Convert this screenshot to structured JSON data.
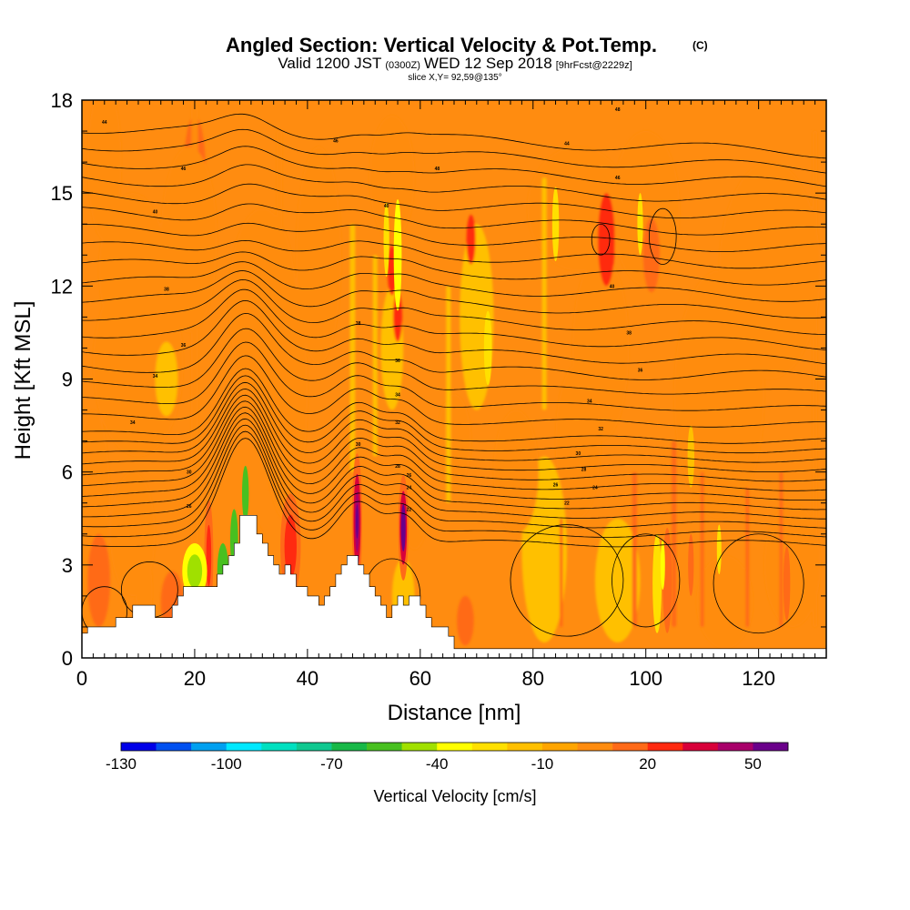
{
  "title": {
    "main": "Angled Section: Vertical Velocity & Pot.Temp.",
    "mark": "(C)",
    "line2_a": "Valid 1200 JST",
    "line2_b": "(0300Z)",
    "line2_c": "WED 12 Sep 2018",
    "line2_d": "[9hrFcst@2229z]",
    "line3": "slice X,Y= 92,59@135°"
  },
  "chart_data": {
    "type": "heatmap",
    "xlabel": "Distance [nm]",
    "ylabel": "Height [Kft MSL]",
    "xlim": [
      0,
      132
    ],
    "ylim": [
      0,
      18
    ],
    "xticks": [
      0,
      20,
      40,
      60,
      80,
      100,
      120
    ],
    "yticks": [
      0,
      3,
      6,
      9,
      12,
      15,
      18
    ],
    "colorbar": {
      "title": "Vertical Velocity [cm/s]",
      "levels": [
        -130,
        -120,
        -110,
        -100,
        -90,
        -80,
        -70,
        -60,
        -50,
        -40,
        -30,
        -20,
        -10,
        0,
        10,
        20,
        30,
        40,
        50,
        60
      ],
      "colors": [
        "#0000e8",
        "#0050f0",
        "#00a0f0",
        "#00e8ff",
        "#00e0c0",
        "#10c890",
        "#18b848",
        "#48c020",
        "#a0e000",
        "#ffff00",
        "#ffe000",
        "#ffc000",
        "#ffa500",
        "#ff8c10",
        "#ff6a18",
        "#ff2a10",
        "#d8003a",
        "#a8006a",
        "#6a008a"
      ],
      "tick_labels": [
        {
          "value": -130,
          "label": "-130"
        },
        {
          "value": -100,
          "label": "-100"
        },
        {
          "value": -70,
          "label": "-70"
        },
        {
          "value": -40,
          "label": "-40"
        },
        {
          "value": -10,
          "label": "-10"
        },
        {
          "value": 20,
          "label": "20"
        },
        {
          "value": 50,
          "label": "50"
        }
      ]
    },
    "background_velocity": 0,
    "velocity_cells": [
      {
        "x": 4,
        "y": 16.0,
        "rx": 3.0,
        "ry": 2.5,
        "v": 8
      },
      {
        "x": 9,
        "y": 12.5,
        "rx": 6.0,
        "ry": 2.5,
        "v": 8
      },
      {
        "x": 20,
        "y": 15.5,
        "rx": 2.0,
        "ry": 2.0,
        "v": 12
      },
      {
        "x": 19,
        "y": 13.5,
        "rx": 5.0,
        "ry": 3.0,
        "v": 6
      },
      {
        "x": 32,
        "y": 11.5,
        "rx": 6.0,
        "ry": 3.0,
        "v": 6
      },
      {
        "x": 42,
        "y": 13.0,
        "rx": 4.0,
        "ry": 3.5,
        "v": 6
      },
      {
        "x": 55,
        "y": 15.5,
        "rx": 4.0,
        "ry": 2.0,
        "v": 5
      },
      {
        "x": 88,
        "y": 14.5,
        "rx": 9.0,
        "ry": 2.0,
        "v": 6
      },
      {
        "x": 100,
        "y": 14.5,
        "rx": 6.0,
        "ry": 2.5,
        "v": 6
      },
      {
        "x": 122,
        "y": 12.5,
        "rx": 9.0,
        "ry": 3.5,
        "v": 8
      },
      {
        "x": 92,
        "y": 10.0,
        "rx": 5.0,
        "ry": 3.0,
        "v": 6
      },
      {
        "x": 113,
        "y": 8.5,
        "rx": 8.0,
        "ry": 4.0,
        "v": 7
      },
      {
        "x": 88,
        "y": 7.0,
        "rx": 4.0,
        "ry": 2.5,
        "v": 5
      },
      {
        "x": 10,
        "y": 9.5,
        "rx": 8.0,
        "ry": 3.0,
        "v": 6
      },
      {
        "x": 36,
        "y": 8.5,
        "rx": 4.0,
        "ry": 4.0,
        "v": 6
      },
      {
        "x": 2,
        "y": 5.0,
        "rx": 3.0,
        "ry": 3.0,
        "v": 8
      },
      {
        "x": 9,
        "y": 4.0,
        "rx": 4.0,
        "ry": 2.0,
        "v": 6
      },
      {
        "x": 11,
        "y": 2.2,
        "rx": 1.5,
        "ry": 1.2,
        "v": 8
      },
      {
        "x": 3,
        "y": 2.5,
        "rx": 2.0,
        "ry": 1.5,
        "v": 12
      },
      {
        "x": 15,
        "y": 9.0,
        "rx": 2.0,
        "ry": 1.2,
        "v": -18
      },
      {
        "x": 55,
        "y": 10.0,
        "rx": 2.0,
        "ry": 2.0,
        "v": -15
      },
      {
        "x": 70,
        "y": 11.0,
        "rx": 3.0,
        "ry": 3.0,
        "v": -12
      },
      {
        "x": 82,
        "y": 3.5,
        "rx": 4.0,
        "ry": 3.0,
        "v": -12
      },
      {
        "x": 95,
        "y": 2.5,
        "rx": 4.0,
        "ry": 2.0,
        "v": -12
      },
      {
        "x": 57,
        "y": 2.0,
        "rx": 2.0,
        "ry": 1.2,
        "v": -18
      },
      {
        "x": 93,
        "y": 13.5,
        "rx": 1.5,
        "ry": 1.5,
        "v": 25
      },
      {
        "x": 101,
        "y": 13.0,
        "rx": 1.5,
        "ry": 1.2,
        "v": 18
      },
      {
        "x": 55,
        "y": 12.5,
        "rx": 0.8,
        "ry": 0.8,
        "v": 25
      },
      {
        "x": 69,
        "y": 13.5,
        "rx": 0.8,
        "ry": 0.8,
        "v": 25
      },
      {
        "x": 56,
        "y": 11.0,
        "rx": 0.8,
        "ry": 0.8,
        "v": 20
      },
      {
        "x": 16,
        "y": 1.8,
        "rx": 2.0,
        "ry": 1.0,
        "v": 12
      },
      {
        "x": 68,
        "y": 1.2,
        "rx": 1.5,
        "ry": 0.8,
        "v": 12
      },
      {
        "x": 59,
        "y": 5.0,
        "rx": 2.5,
        "ry": 1.5,
        "v": 5
      },
      {
        "x": 66,
        "y": 7.0,
        "rx": 3.0,
        "ry": 1.5,
        "v": 6
      },
      {
        "x": 77,
        "y": 6.0,
        "rx": 4.0,
        "ry": 2.0,
        "v": 6
      },
      {
        "x": 114,
        "y": 1.8,
        "rx": 5.0,
        "ry": 1.5,
        "v": 6
      },
      {
        "x": 126,
        "y": 3.0,
        "rx": 5.0,
        "ry": 2.0,
        "v": 6
      },
      {
        "x": 30,
        "y": 3.2,
        "rx": 3.0,
        "ry": 1.2,
        "v": 6
      }
    ],
    "velocity_plumes": [
      {
        "x": 20,
        "y_bottom": 3.0,
        "y_top": 18.0,
        "w": 1.2,
        "v": 6
      },
      {
        "x": 35,
        "y_bottom": 8.0,
        "y_top": 17.0,
        "w": 1.0,
        "v": 6
      },
      {
        "x": 48,
        "y_bottom": 6.0,
        "y_top": 14.0,
        "w": 0.9,
        "v": -12
      },
      {
        "x": 52,
        "y_bottom": 6.5,
        "y_top": 13.0,
        "w": 0.8,
        "v": -12
      },
      {
        "x": 65,
        "y_bottom": 5.0,
        "y_top": 12.0,
        "w": 0.8,
        "v": -15
      },
      {
        "x": 82,
        "y_bottom": 8.0,
        "y_top": 15.5,
        "w": 0.8,
        "v": -15
      },
      {
        "x": 98,
        "y_bottom": 1.0,
        "y_top": 6.0,
        "w": 0.8,
        "v": 15
      },
      {
        "x": 105,
        "y_bottom": 1.0,
        "y_top": 7.0,
        "w": 0.8,
        "v": 15
      },
      {
        "x": 110,
        "y_bottom": 1.0,
        "y_top": 6.0,
        "w": 0.6,
        "v": 12
      },
      {
        "x": 118,
        "y_bottom": 1.0,
        "y_top": 5.5,
        "w": 0.6,
        "v": 12
      },
      {
        "x": 85,
        "y_bottom": 1.0,
        "y_top": 4.5,
        "w": 0.5,
        "v": 10
      },
      {
        "x": 124,
        "y_bottom": 1.0,
        "y_top": 6.0,
        "w": 0.6,
        "v": 12
      },
      {
        "x": 130,
        "y_bottom": 1.0,
        "y_top": 17.0,
        "w": 0.8,
        "v": 8
      }
    ],
    "strong_features": [
      {
        "x": 22.5,
        "y": 3.3,
        "rx": 0.8,
        "ry": 1.8,
        "levels": [
          {
            "scale": 1.0,
            "v": 18
          },
          {
            "scale": 0.55,
            "v": 28
          }
        ]
      },
      {
        "x": 37,
        "y": 3.6,
        "rx": 1.8,
        "ry": 1.7,
        "levels": [
          {
            "scale": 1.0,
            "v": 15
          },
          {
            "scale": 0.6,
            "v": 25
          }
        ]
      },
      {
        "x": 48.8,
        "y": 4.4,
        "rx": 0.9,
        "ry": 2.2,
        "levels": [
          {
            "scale": 1.0,
            "v": 18
          },
          {
            "scale": 0.7,
            "v": 35
          },
          {
            "scale": 0.45,
            "v": 45
          },
          {
            "scale": 0.25,
            "v": 55
          }
        ]
      },
      {
        "x": 57,
        "y": 4.2,
        "rx": 0.9,
        "ry": 1.7,
        "levels": [
          {
            "scale": 1.0,
            "v": 18
          },
          {
            "scale": 0.7,
            "v": 35
          },
          {
            "scale": 0.45,
            "v": 50
          }
        ]
      },
      {
        "x": 103.8,
        "y": 2.5,
        "rx": 0.8,
        "ry": 1.7,
        "levels": [
          {
            "scale": 1.0,
            "v": 18
          }
        ]
      },
      {
        "x": 108,
        "y": 3.0,
        "rx": 0.5,
        "ry": 1.0,
        "levels": [
          {
            "scale": 1.0,
            "v": 15
          }
        ]
      },
      {
        "x": 125,
        "y": 2.4,
        "rx": 0.6,
        "ry": 1.2,
        "levels": [
          {
            "scale": 1.0,
            "v": 15
          }
        ]
      },
      {
        "x": 20,
        "y": 2.8,
        "rx": 2.2,
        "ry": 0.9,
        "levels": [
          {
            "scale": 1.0,
            "v": -35
          },
          {
            "scale": 0.6,
            "v": -45
          }
        ]
      },
      {
        "x": 25,
        "y": 2.8,
        "rx": 1.0,
        "ry": 0.9,
        "levels": [
          {
            "scale": 1.0,
            "v": -55
          }
        ]
      },
      {
        "x": 29,
        "y": 5.3,
        "rx": 0.6,
        "ry": 0.9,
        "levels": [
          {
            "scale": 1.0,
            "v": -60
          }
        ]
      },
      {
        "x": 27,
        "y": 3.8,
        "rx": 0.7,
        "ry": 1.0,
        "levels": [
          {
            "scale": 1.0,
            "v": -55
          }
        ]
      },
      {
        "x": 102,
        "y": 2.4,
        "rx": 0.8,
        "ry": 1.6,
        "levels": [
          {
            "scale": 1.0,
            "v": -30
          }
        ]
      },
      {
        "x": 113,
        "y": 3.5,
        "rx": 0.4,
        "ry": 0.8,
        "levels": [
          {
            "scale": 1.0,
            "v": -25
          }
        ]
      },
      {
        "x": 54,
        "y": 13.5,
        "rx": 0.5,
        "ry": 1.2,
        "levels": [
          {
            "scale": 1.0,
            "v": -30
          }
        ]
      },
      {
        "x": 56,
        "y": 13.0,
        "rx": 0.7,
        "ry": 1.8,
        "levels": [
          {
            "scale": 1.0,
            "v": -40
          }
        ]
      },
      {
        "x": 84,
        "y": 14.0,
        "rx": 0.6,
        "ry": 1.2,
        "levels": [
          {
            "scale": 1.0,
            "v": -25
          }
        ]
      },
      {
        "x": 99,
        "y": 14.0,
        "rx": 0.5,
        "ry": 1.0,
        "levels": [
          {
            "scale": 1.0,
            "v": -25
          }
        ]
      },
      {
        "x": 108,
        "y": 6.5,
        "rx": 0.6,
        "ry": 1.0,
        "levels": [
          {
            "scale": 1.0,
            "v": -20
          }
        ]
      },
      {
        "x": 72,
        "y": 10.0,
        "rx": 0.7,
        "ry": 1.2,
        "levels": [
          {
            "scale": 1.0,
            "v": -25
          }
        ]
      },
      {
        "x": 103,
        "y": 3.0,
        "rx": 0.4,
        "ry": 0.8,
        "levels": [
          {
            "scale": 1.0,
            "v": -40
          }
        ]
      }
    ],
    "terrain": {
      "x": [
        0,
        1,
        1,
        6,
        6,
        9,
        9,
        13,
        13,
        16,
        16,
        17,
        17,
        18,
        18,
        19,
        19,
        20,
        20,
        24,
        24,
        25,
        25,
        26,
        26,
        27,
        27,
        28,
        28,
        31,
        31,
        32,
        32,
        33,
        33,
        34,
        34,
        35,
        35,
        36,
        36,
        37,
        37,
        38,
        38,
        39,
        39,
        40,
        40,
        41,
        41,
        42,
        42,
        43,
        43,
        44,
        44,
        45,
        45,
        46,
        46,
        47,
        47,
        49,
        49,
        50,
        50,
        51,
        51,
        52,
        52,
        53,
        53,
        54,
        54,
        55,
        55,
        56,
        56,
        57,
        57,
        58,
        58,
        59,
        59,
        60,
        60,
        61,
        61,
        62,
        62,
        63,
        63,
        64,
        64,
        65,
        65,
        66,
        66,
        67,
        67,
        68,
        68,
        69,
        69,
        70,
        70,
        71,
        71,
        72,
        72,
        132
      ],
      "height": [
        0.8,
        0.8,
        1.0,
        1.0,
        1.3,
        1.3,
        1.7,
        1.7,
        1.3,
        1.3,
        1.7,
        1.7,
        2.0,
        2.0,
        2.3,
        2.3,
        2.3,
        2.3,
        2.3,
        2.3,
        2.7,
        2.7,
        3.0,
        3.0,
        3.3,
        3.3,
        3.7,
        3.7,
        4.6,
        4.6,
        4.0,
        4.0,
        3.7,
        3.7,
        3.3,
        3.3,
        3.0,
        3.0,
        2.7,
        2.7,
        3.0,
        3.0,
        2.7,
        2.7,
        2.3,
        2.3,
        2.3,
        2.3,
        2.0,
        2.0,
        2.0,
        2.0,
        1.7,
        1.7,
        2.0,
        2.0,
        2.3,
        2.3,
        2.7,
        2.7,
        3.0,
        3.0,
        3.3,
        3.3,
        3.0,
        3.0,
        2.7,
        2.7,
        2.3,
        2.3,
        2.0,
        2.0,
        1.7,
        1.7,
        1.3,
        1.3,
        1.7,
        1.7,
        2.0,
        2.0,
        1.7,
        1.7,
        2.0,
        2.0,
        2.0,
        2.0,
        1.7,
        1.7,
        1.3,
        1.3,
        1.0,
        1.0,
        1.0,
        1.0,
        1.0,
        1.0,
        0.7,
        0.7,
        0.3,
        0.3,
        0.3,
        0.3,
        0.3,
        0.3,
        0.3,
        0.3,
        0.3,
        0.3,
        0.3,
        0.3,
        0.3,
        0.3
      ]
    },
    "theta_contour_labels": [
      {
        "x": 4,
        "y": 17.3,
        "label": "44"
      },
      {
        "x": 45,
        "y": 16.7,
        "label": "46"
      },
      {
        "x": 95,
        "y": 17.7,
        "label": "48"
      },
      {
        "x": 86,
        "y": 16.6,
        "label": "44"
      },
      {
        "x": 18,
        "y": 15.8,
        "label": "46"
      },
      {
        "x": 63,
        "y": 15.8,
        "label": "48"
      },
      {
        "x": 95,
        "y": 15.5,
        "label": "46"
      },
      {
        "x": 13,
        "y": 14.4,
        "label": "40"
      },
      {
        "x": 54,
        "y": 14.6,
        "label": "40"
      },
      {
        "x": 15,
        "y": 11.9,
        "label": "38"
      },
      {
        "x": 94,
        "y": 12.0,
        "label": "40"
      },
      {
        "x": 49,
        "y": 10.8,
        "label": "38"
      },
      {
        "x": 18,
        "y": 10.1,
        "label": "36"
      },
      {
        "x": 97,
        "y": 10.5,
        "label": "38"
      },
      {
        "x": 56,
        "y": 9.6,
        "label": "36"
      },
      {
        "x": 13,
        "y": 9.1,
        "label": "34"
      },
      {
        "x": 99,
        "y": 9.3,
        "label": "36"
      },
      {
        "x": 56,
        "y": 8.5,
        "label": "34"
      },
      {
        "x": 90,
        "y": 8.3,
        "label": "34"
      },
      {
        "x": 9,
        "y": 7.6,
        "label": "34"
      },
      {
        "x": 56,
        "y": 7.6,
        "label": "32"
      },
      {
        "x": 92,
        "y": 7.4,
        "label": "32"
      },
      {
        "x": 49,
        "y": 6.9,
        "label": "30"
      },
      {
        "x": 88,
        "y": 6.6,
        "label": "30"
      },
      {
        "x": 19,
        "y": 6.0,
        "label": "30"
      },
      {
        "x": 56,
        "y": 6.2,
        "label": "28"
      },
      {
        "x": 89,
        "y": 6.1,
        "label": "28"
      },
      {
        "x": 58,
        "y": 5.9,
        "label": "26"
      },
      {
        "x": 58,
        "y": 5.5,
        "label": "24"
      },
      {
        "x": 84,
        "y": 5.6,
        "label": "26"
      },
      {
        "x": 91,
        "y": 5.5,
        "label": "24"
      },
      {
        "x": 19,
        "y": 4.9,
        "label": "26"
      },
      {
        "x": 58,
        "y": 4.8,
        "label": "22"
      },
      {
        "x": 86,
        "y": 5.0,
        "label": "22"
      }
    ]
  }
}
